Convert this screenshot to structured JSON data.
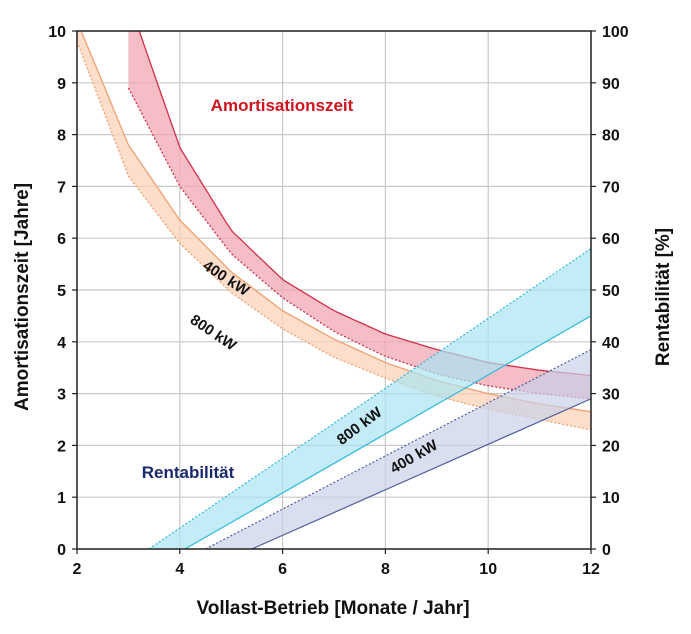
{
  "colors": {
    "amort_400_fill": "#f2a7b3",
    "amort_400_stroke": "#d23048",
    "amort_800_fill": "#fcd3b8",
    "amort_800_stroke": "#f0a070",
    "rent_800_fill": "#a9e4f2",
    "rent_800_stroke": "#31b8de",
    "rent_400_fill": "#c9d2e8",
    "rent_400_stroke": "#4f5f9e",
    "annot_amort": "#d0141e",
    "annot_rent": "#1a2a6c",
    "grid": "#c8c8c8"
  },
  "chart_data": {
    "type": "area",
    "xlabel": "Vollast-Betrieb [Monate / Jahr]",
    "ylabel_left": "Amortisationszeit [Jahre]",
    "ylabel_right": "Rentabilität [%]",
    "xlim": [
      2,
      12
    ],
    "ylim_left": [
      0,
      10
    ],
    "ylim_right": [
      0,
      100
    ],
    "x_ticks": [
      2,
      4,
      6,
      8,
      10,
      12
    ],
    "y_ticks_left": [
      0,
      1,
      2,
      3,
      4,
      5,
      6,
      7,
      8,
      9,
      10
    ],
    "y_ticks_right": [
      0,
      10,
      20,
      30,
      40,
      50,
      60,
      70,
      80,
      90,
      100
    ],
    "grid": true,
    "annotations": {
      "amortisation": "Amortisationszeit",
      "rentability": "Rentabilität"
    },
    "series": [
      {
        "name": "400 kW",
        "group": "Amortisationszeit",
        "axis": "left",
        "x": [
          3,
          4,
          5,
          6,
          7,
          8,
          9,
          10,
          11,
          12
        ],
        "upper": [
          10.6,
          7.75,
          6.15,
          5.2,
          4.6,
          4.15,
          3.85,
          3.6,
          3.45,
          3.35
        ],
        "lower": [
          8.9,
          7.0,
          5.7,
          4.85,
          4.2,
          3.72,
          3.38,
          3.15,
          3.0,
          2.9
        ]
      },
      {
        "name": "800 kW",
        "group": "Amortisationszeit",
        "axis": "left",
        "x": [
          2,
          3,
          4,
          5,
          6,
          7,
          8,
          9,
          10,
          11,
          12
        ],
        "upper": [
          10.2,
          7.8,
          6.35,
          5.35,
          4.6,
          4.05,
          3.6,
          3.25,
          3.0,
          2.8,
          2.65
        ],
        "lower": [
          9.8,
          7.2,
          5.9,
          4.95,
          4.25,
          3.7,
          3.3,
          2.95,
          2.7,
          2.5,
          2.3
        ]
      },
      {
        "name": "800 kW",
        "group": "Rentabilität",
        "axis": "right",
        "x": [
          3.4,
          4.1,
          12
        ],
        "upper_line": {
          "x": [
            3.4,
            12
          ],
          "y": [
            0,
            58
          ]
        },
        "lower_line": {
          "x": [
            4.1,
            12
          ],
          "y": [
            0,
            45
          ]
        }
      },
      {
        "name": "400 kW",
        "group": "Rentabilität",
        "axis": "right",
        "x": [
          4.5,
          5.4,
          12
        ],
        "upper_line": {
          "x": [
            4.5,
            12
          ],
          "y": [
            0,
            38.5
          ]
        },
        "lower_line": {
          "x": [
            5.4,
            12
          ],
          "y": [
            0,
            29
          ]
        }
      }
    ]
  }
}
